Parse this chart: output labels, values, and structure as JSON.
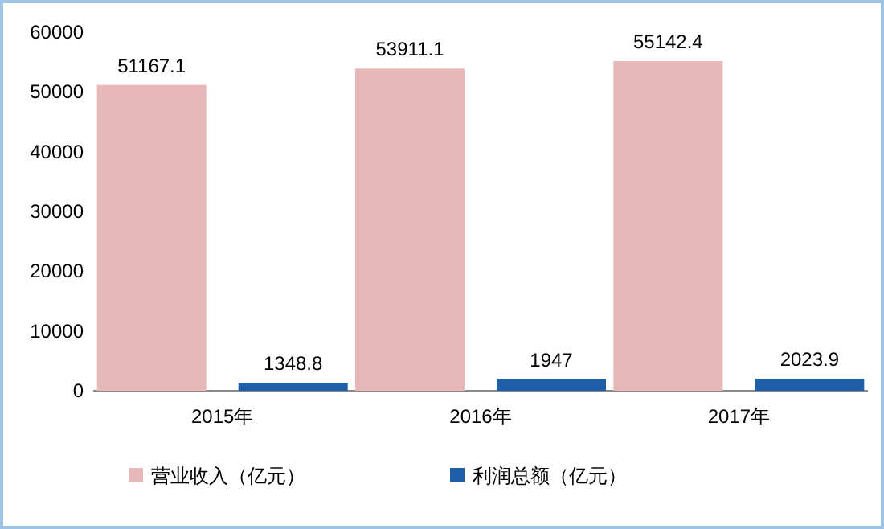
{
  "chart_data": {
    "type": "bar",
    "categories": [
      "2015年",
      "2016年",
      "2017年"
    ],
    "series": [
      {
        "name": "营业收入（亿元）",
        "color": "#e6b9b8",
        "values": [
          51167.1,
          53911.1,
          55142.4
        ]
      },
      {
        "name": "利润总额（亿元）",
        "color": "#1f5fa8",
        "values": [
          1348.8,
          1947,
          2023.9
        ]
      }
    ],
    "ylim": [
      0,
      60000
    ],
    "yticks": [
      0,
      10000,
      20000,
      30000,
      40000,
      50000,
      60000
    ],
    "data_labels": true,
    "legend": "bottom"
  }
}
